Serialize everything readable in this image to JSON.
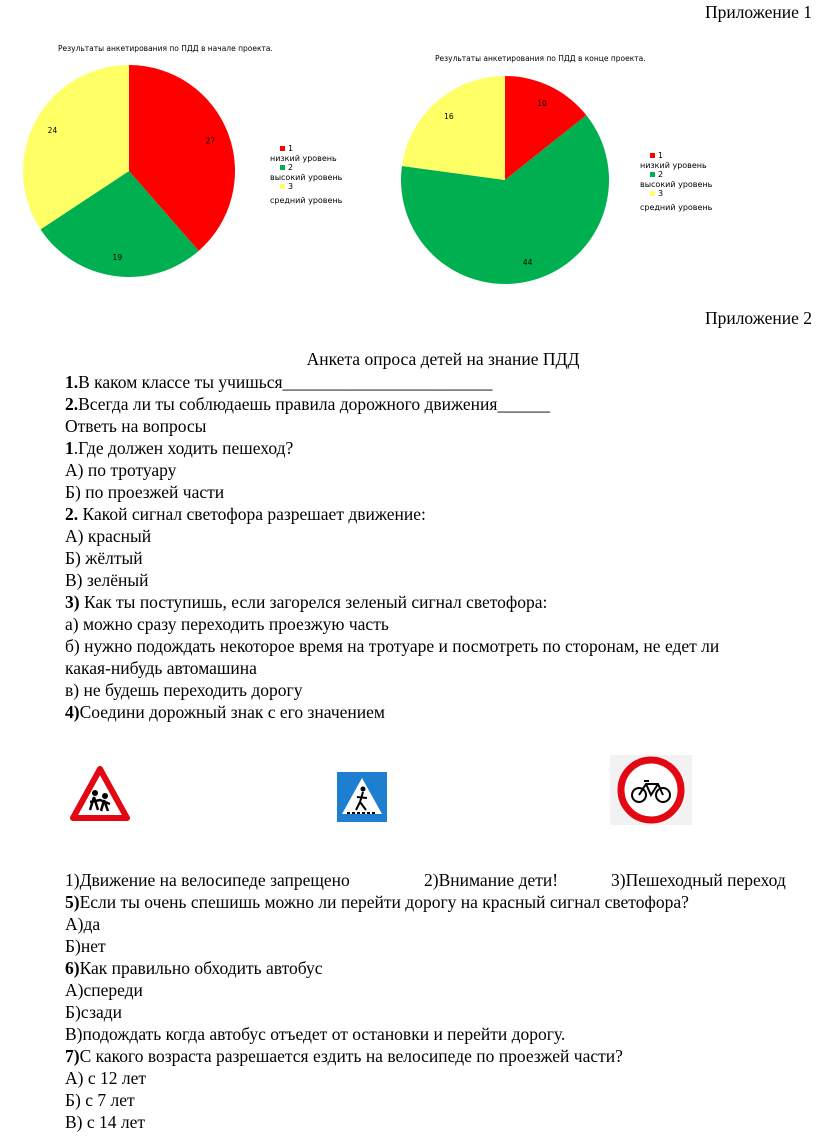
{
  "appendix1": "Приложение 1",
  "appendix2": "Приложение 2",
  "chart_data": [
    {
      "type": "pie",
      "title": "Результаты анкетирования по ПДД в начале проекта.",
      "categories": [
        "1\nнизкий уровень",
        "2\nвысокий уровень",
        "3\nсредний уровень"
      ],
      "legend_numbers": [
        "1",
        "2",
        "3"
      ],
      "legend_labels": [
        "низкий уровень",
        "высокий уровень",
        "средний уровень"
      ],
      "values": [
        27,
        19,
        24
      ],
      "colors": [
        "#ff0000",
        "#00b050",
        "#ffff66"
      ],
      "legend": "right"
    },
    {
      "type": "pie",
      "title": "Результаты анкетирования по ПДД в  конце проекта.",
      "legend_numbers": [
        "1",
        "2",
        "3"
      ],
      "legend_labels": [
        "низкий уровень",
        "высокий уровень",
        "средний уровень"
      ],
      "values": [
        10,
        44,
        16
      ],
      "colors": [
        "#ff0000",
        "#00b050",
        "#ffff66"
      ],
      "legend": "right"
    }
  ],
  "survey": {
    "title": "Анкета опроса детей на знание ПДД",
    "lines": [
      {
        "b": "1.",
        "t": "В каком классе ты учишься________________________"
      },
      {
        "b": "2.",
        "t": "Всегда ли ты соблюдаешь правила дорожного движения______"
      },
      {
        "b": "",
        "t": "Ответь на вопросы"
      },
      {
        "b": "1",
        "t": ".Где должен ходить пешеход?"
      },
      {
        "b": "",
        "t": "А) по тротуару"
      },
      {
        "b": "",
        "t": "Б) по проезжей части"
      },
      {
        "b": "2.",
        "t": " Какой сигнал светофора разрешает движение:"
      },
      {
        "b": "",
        "t": "А) красный"
      },
      {
        "b": "",
        "t": "Б) жёлтый"
      },
      {
        "b": "",
        "t": "В) зелёный"
      },
      {
        "b": "3)",
        "t": " Как ты поступишь, если загорелся зеленый сигнал светофора:"
      },
      {
        "b": "",
        "t": "а) можно сразу переходить проезжую часть"
      },
      {
        "b": "",
        "t": "б) нужно подождать некоторое время на тротуаре и посмотреть по сторонам, не едет ли"
      },
      {
        "b": "",
        "t": "какая-нибудь автомашина"
      },
      {
        "b": "",
        "t": "в) не будешь переходить дорогу"
      },
      {
        "b": "4)",
        "t": "Соедини дорожный знак с его значением"
      }
    ],
    "sign_meanings": [
      "1)Движение на велосипеде запрещено",
      "2)Внимание дети!",
      "3)Пешеходный переход"
    ],
    "lines2": [
      {
        "b": "5)",
        "t": "Если ты очень спешишь можно ли перейти дорогу на красный сигнал светофора?"
      },
      {
        "b": "",
        "t": "А)да"
      },
      {
        "b": "",
        "t": "Б)нет"
      },
      {
        "b": "6)",
        "t": "Как правильно обходить автобус"
      },
      {
        "b": "",
        "t": "А)спереди"
      },
      {
        "b": "",
        "t": "Б)сзади"
      },
      {
        "b": "",
        "t": "В)подождать когда автобус отъедет от остановки и перейти дорогу."
      },
      {
        "b": "7)",
        "t": "С какого возраста разрешается ездить на велосипеде по проезжей части?"
      },
      {
        "b": "",
        "t": "А) с 12 лет"
      },
      {
        "b": "",
        "t": "Б) с 7 лет"
      },
      {
        "b": "",
        "t": "В) с 14 лет"
      }
    ]
  }
}
